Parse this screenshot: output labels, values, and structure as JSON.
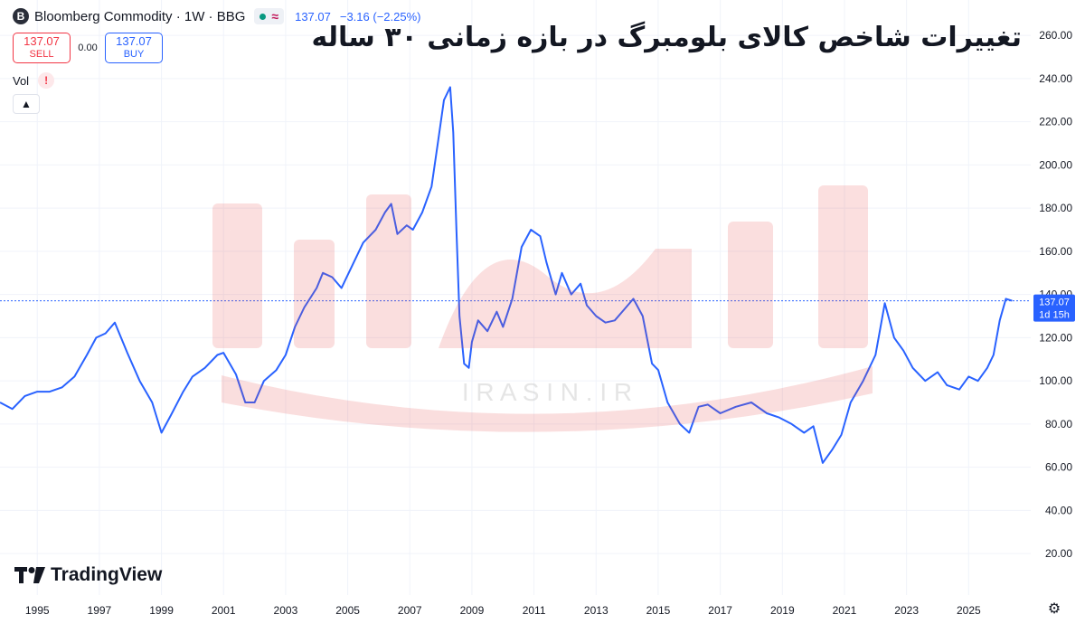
{
  "header": {
    "badge_letter": "B",
    "symbol": "Bloomberg Commodity · 1W · BBG",
    "price": "137.07",
    "change": "−3.16 (−2.25%)"
  },
  "trade": {
    "sell_price": "137.07",
    "sell_label": "SELL",
    "spread": "0.00",
    "buy_price": "137.07",
    "buy_label": "BUY"
  },
  "volume": {
    "label": "Vol",
    "warning": "!"
  },
  "title_fa": "تغییرات شاخص کالای بلومبرگ در بازه زمانی ۳۰ ساله",
  "watermark_text": "I R A S I N . I R",
  "branding": {
    "name": "TradingView"
  },
  "price_marker": {
    "value": "137.07",
    "countdown": "1d 15h"
  },
  "colors": {
    "line": "#2962ff",
    "grid": "#f0f3fa",
    "watermark": "#e74c4c"
  },
  "chart_data": {
    "type": "line",
    "title": "",
    "xlabel": "",
    "ylabel": "",
    "xlim": [
      1993.8,
      2027.0
    ],
    "ylim": [
      5,
      268
    ],
    "yticks": [
      "20.00",
      "40.00",
      "60.00",
      "80.00",
      "100.00",
      "120.00",
      "140.00",
      "160.00",
      "180.00",
      "200.00",
      "220.00",
      "240.00",
      "260.00"
    ],
    "xticks": [
      "1995",
      "1997",
      "1999",
      "2001",
      "2003",
      "2005",
      "2007",
      "2009",
      "2011",
      "2013",
      "2015",
      "2017",
      "2019",
      "2021",
      "2023",
      "2025"
    ],
    "last_value": 137.07,
    "series": [
      {
        "x": [
          1993.8,
          1994.2,
          1994.6,
          1995.0,
          1995.4,
          1995.8,
          1996.2,
          1996.6,
          1996.9,
          1997.2,
          1997.5,
          1997.9,
          1998.3,
          1998.7,
          1999.0,
          1999.3,
          1999.7,
          2000.0,
          2000.4,
          2000.8,
          2001.0,
          2001.4,
          2001.7,
          2002.0,
          2002.3,
          2002.7,
          2003.0,
          2003.3,
          2003.6,
          2004.0,
          2004.2,
          2004.5,
          2004.8,
          2005.2,
          2005.5,
          2005.9,
          2006.2,
          2006.4,
          2006.6,
          2006.9,
          2007.1,
          2007.4,
          2007.7,
          2007.9,
          2008.1,
          2008.3,
          2008.4,
          2008.5,
          2008.6,
          2008.75,
          2008.9,
          2009.0,
          2009.2,
          2009.5,
          2009.8,
          2010.0,
          2010.3,
          2010.6,
          2010.9,
          2011.2,
          2011.4,
          2011.7,
          2011.9,
          2012.2,
          2012.5,
          2012.7,
          2013.0,
          2013.3,
          2013.6,
          2013.9,
          2014.2,
          2014.5,
          2014.8,
          2015.0,
          2015.3,
          2015.7,
          2016.0,
          2016.3,
          2016.6,
          2017.0,
          2017.5,
          2018.0,
          2018.5,
          2018.9,
          2019.3,
          2019.7,
          2020.0,
          2020.3,
          2020.6,
          2020.9,
          2021.2,
          2021.6,
          2022.0,
          2022.3,
          2022.6,
          2022.9,
          2023.2,
          2023.6,
          2024.0,
          2024.3,
          2024.7,
          2025.0,
          2025.3,
          2025.6,
          2025.8,
          2026.0,
          2026.2,
          2026.4
        ],
        "y": [
          90,
          87,
          93,
          95,
          95,
          97,
          102,
          112,
          120,
          122,
          127,
          113,
          100,
          90,
          76,
          84,
          95,
          102,
          106,
          112,
          113,
          103,
          90,
          90,
          100,
          105,
          112,
          125,
          134,
          143,
          150,
          148,
          143,
          155,
          164,
          170,
          178,
          182,
          168,
          172,
          170,
          178,
          190,
          210,
          230,
          236,
          215,
          170,
          130,
          108,
          106,
          118,
          128,
          123,
          132,
          125,
          138,
          162,
          170,
          167,
          155,
          140,
          150,
          140,
          145,
          135,
          130,
          127,
          128,
          133,
          138,
          130,
          108,
          105,
          90,
          80,
          76,
          88,
          89,
          85,
          88,
          90,
          85,
          83,
          80,
          76,
          79,
          62,
          68,
          75,
          90,
          100,
          112,
          136,
          120,
          114,
          106,
          100,
          104,
          98,
          96,
          102,
          100,
          106,
          112,
          128,
          138,
          137.07
        ]
      }
    ]
  }
}
